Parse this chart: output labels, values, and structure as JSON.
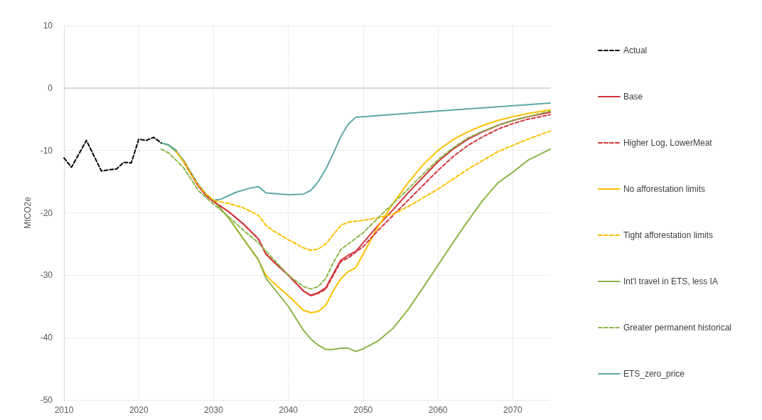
{
  "chart_data": {
    "type": "line",
    "ylabel": "MtCO2e",
    "xlim": [
      2010,
      2075
    ],
    "xticks": [
      2010,
      2020,
      2030,
      2040,
      2050,
      2060,
      2070
    ],
    "ylim": [
      -50,
      10
    ],
    "yticks": [
      -50,
      -40,
      -30,
      -20,
      -10,
      0,
      10
    ],
    "grid": true,
    "legend": "right",
    "marker": "none",
    "series": [
      {
        "name": "Actual",
        "color": "#000000",
        "line_style": "dashed",
        "x": [
          2010,
          2011,
          2013,
          2015,
          2016,
          2017,
          2018,
          2019,
          2020,
          2021,
          2022,
          2023
        ],
        "values": [
          -11.2,
          -12.7,
          -8.4,
          -13.3,
          -13.1,
          -13.0,
          -11.9,
          -12.0,
          -8.2,
          -8.4,
          -7.9,
          -8.8
        ]
      },
      {
        "name": "Base",
        "color": "#d0343a",
        "line_style": "solid",
        "x": [
          2026,
          2027,
          2028,
          2029,
          2030,
          2032,
          2034,
          2036,
          2037,
          2038,
          2040,
          2042,
          2043,
          2044,
          2045,
          2046,
          2047,
          2048,
          2049,
          2050,
          2052,
          2054,
          2056,
          2058,
          2060,
          2062,
          2064,
          2066,
          2068,
          2070,
          2072,
          2075
        ],
        "values": [
          -11.8,
          -13.8,
          -15.8,
          -17.2,
          -18.2,
          -19.8,
          -21.8,
          -24.2,
          -26.6,
          -27.8,
          -30.0,
          -32.5,
          -33.2,
          -32.8,
          -32.0,
          -29.8,
          -27.6,
          -26.8,
          -26.2,
          -24.8,
          -22.0,
          -19.5,
          -16.8,
          -14.3,
          -11.8,
          -9.8,
          -8.2,
          -7.0,
          -6.0,
          -5.2,
          -4.6,
          -3.9
        ]
      },
      {
        "name": "Higher Log, LowerMeat",
        "color": "#d0343a",
        "line_style": "dashed",
        "x": [
          2026,
          2027,
          2028,
          2029,
          2030,
          2032,
          2034,
          2036,
          2037,
          2038,
          2040,
          2042,
          2043,
          2044,
          2045,
          2046,
          2047,
          2048,
          2050,
          2052,
          2054,
          2056,
          2058,
          2060,
          2062,
          2064,
          2066,
          2068,
          2070,
          2072,
          2075
        ],
        "values": [
          -11.8,
          -13.8,
          -15.8,
          -17.2,
          -18.2,
          -19.8,
          -21.8,
          -24.2,
          -26.6,
          -27.8,
          -30.0,
          -32.5,
          -33.3,
          -32.9,
          -32.2,
          -30.0,
          -27.8,
          -27.2,
          -25.4,
          -22.8,
          -20.4,
          -18.0,
          -15.6,
          -13.2,
          -11.0,
          -9.2,
          -7.8,
          -6.6,
          -5.7,
          -5.0,
          -4.3
        ]
      },
      {
        "name": "No afforestation limits",
        "color": "#ffc000",
        "line_style": "solid",
        "x": [
          2025,
          2026,
          2027,
          2028,
          2029,
          2030,
          2032,
          2034,
          2036,
          2037,
          2038,
          2040,
          2042,
          2043,
          2044,
          2045,
          2046,
          2047,
          2048,
          2049,
          2050,
          2052,
          2054,
          2056,
          2058,
          2060,
          2062,
          2064,
          2066,
          2068,
          2070,
          2072,
          2075
        ],
        "values": [
          -10.2,
          -11.8,
          -13.8,
          -15.6,
          -17.0,
          -18.0,
          -20.8,
          -24.2,
          -27.6,
          -30.0,
          -31.2,
          -33.3,
          -35.6,
          -36.0,
          -35.8,
          -34.8,
          -32.5,
          -30.6,
          -29.4,
          -28.8,
          -26.6,
          -22.2,
          -18.5,
          -15.2,
          -12.3,
          -10.0,
          -8.3,
          -7.0,
          -6.0,
          -5.2,
          -4.6,
          -4.1,
          -3.5
        ]
      },
      {
        "name": "Tight afforestation limits",
        "color": "#ffc000",
        "line_style": "dashed",
        "x": [
          2025,
          2026,
          2027,
          2028,
          2029,
          2030,
          2032,
          2034,
          2036,
          2037,
          2038,
          2040,
          2042,
          2043,
          2044,
          2045,
          2046,
          2047,
          2048,
          2050,
          2052,
          2054,
          2056,
          2058,
          2060,
          2062,
          2064,
          2066,
          2068,
          2070,
          2072,
          2075
        ],
        "values": [
          -10.2,
          -11.8,
          -13.8,
          -15.6,
          -17.0,
          -18.0,
          -18.5,
          -19.2,
          -20.4,
          -22.0,
          -22.9,
          -24.3,
          -25.6,
          -26.0,
          -25.8,
          -25.0,
          -23.5,
          -22.0,
          -21.5,
          -21.2,
          -20.8,
          -20.2,
          -19.0,
          -17.6,
          -16.2,
          -14.6,
          -13.0,
          -11.6,
          -10.2,
          -9.2,
          -8.2,
          -6.9
        ]
      },
      {
        "name": "Int'l travel in ETS, less IA",
        "color": "#8db54a",
        "line_style": "solid",
        "x": [
          2023,
          2024,
          2025,
          2026,
          2027,
          2028,
          2029,
          2030,
          2032,
          2034,
          2036,
          2037,
          2038,
          2040,
          2042,
          2043,
          2044,
          2045,
          2046,
          2047,
          2048,
          2049,
          2050,
          2052,
          2054,
          2056,
          2058,
          2060,
          2062,
          2064,
          2066,
          2068,
          2070,
          2072,
          2075
        ],
        "values": [
          -8.8,
          -9.2,
          -10.2,
          -11.6,
          -13.6,
          -15.6,
          -17.0,
          -18.0,
          -20.8,
          -24.2,
          -27.5,
          -30.5,
          -32.0,
          -35.0,
          -38.8,
          -40.2,
          -41.2,
          -41.9,
          -41.9,
          -41.7,
          -41.7,
          -42.2,
          -41.8,
          -40.5,
          -38.5,
          -35.5,
          -32.0,
          -28.4,
          -24.8,
          -21.3,
          -18.0,
          -15.2,
          -13.5,
          -11.6,
          -9.8
        ]
      },
      {
        "name": "Greater permanent historical",
        "color": "#8db54a",
        "line_style": "dashed",
        "x": [
          2023,
          2024,
          2026,
          2028,
          2030,
          2032,
          2034,
          2036,
          2038,
          2040,
          2042,
          2043,
          2044,
          2045,
          2046,
          2047,
          2048,
          2050,
          2052,
          2054,
          2056,
          2058,
          2060,
          2062,
          2064,
          2066,
          2068,
          2070,
          2072,
          2075
        ],
        "values": [
          -9.8,
          -10.4,
          -12.8,
          -16.5,
          -18.6,
          -20.6,
          -22.8,
          -24.8,
          -27.4,
          -30.0,
          -31.8,
          -32.2,
          -31.8,
          -30.5,
          -28.0,
          -25.9,
          -25.0,
          -23.2,
          -20.8,
          -18.5,
          -16.2,
          -13.8,
          -11.5,
          -9.6,
          -8.0,
          -6.9,
          -6.0,
          -5.2,
          -4.6,
          -3.7
        ]
      },
      {
        "name": "ETS_zero_price",
        "color": "#5fa8a8",
        "line_style": "solid",
        "x": [
          2023,
          2024,
          2025,
          2026,
          2028,
          2029,
          2030,
          2031,
          2033,
          2035,
          2036,
          2037,
          2038,
          2040,
          2042,
          2043,
          2044,
          2045,
          2046,
          2047,
          2048,
          2049,
          2050,
          2060,
          2075
        ],
        "values": [
          -8.8,
          -9.1,
          -10.0,
          -11.8,
          -15.5,
          -17.0,
          -18.0,
          -17.8,
          -16.7,
          -16.0,
          -15.8,
          -16.8,
          -16.9,
          -17.1,
          -17.0,
          -16.4,
          -15.0,
          -13.0,
          -10.5,
          -7.8,
          -5.8,
          -4.7,
          -4.6,
          -3.7,
          -2.4
        ]
      }
    ]
  }
}
